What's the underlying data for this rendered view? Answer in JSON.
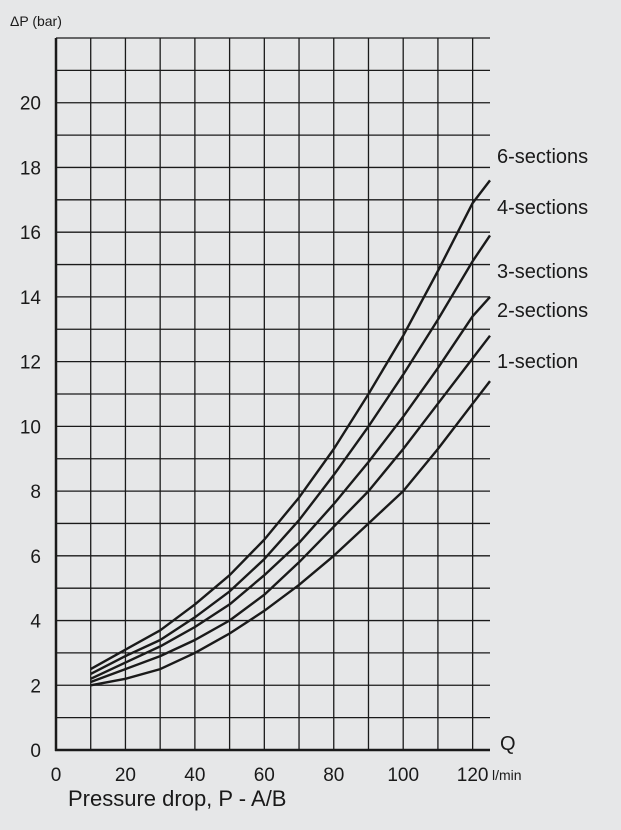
{
  "caption": "Pressure drop, P - A/B",
  "chart_data": {
    "type": "line",
    "ylabel": "ΔP (bar)",
    "xlabel_letter": "Q",
    "xunit": "l/min",
    "xlim": [
      0,
      125
    ],
    "ylim": [
      0,
      22
    ],
    "xticks": [
      0,
      20,
      40,
      60,
      80,
      100,
      120
    ],
    "yticks": [
      0,
      2,
      4,
      6,
      8,
      10,
      12,
      14,
      16,
      18,
      20
    ],
    "grid": true,
    "legend_placement": "right",
    "series": [
      {
        "name": "6-sections",
        "x": [
          10,
          20,
          30,
          40,
          50,
          60,
          70,
          80,
          90,
          100,
          110,
          120,
          125
        ],
        "y": [
          2.5,
          3.1,
          3.7,
          4.5,
          5.4,
          6.5,
          7.8,
          9.3,
          11.0,
          12.8,
          14.8,
          16.9,
          17.6
        ]
      },
      {
        "name": "4-sections",
        "x": [
          10,
          20,
          30,
          40,
          50,
          60,
          70,
          80,
          90,
          100,
          110,
          120,
          125
        ],
        "y": [
          2.35,
          2.9,
          3.4,
          4.1,
          4.9,
          5.9,
          7.1,
          8.5,
          10.0,
          11.6,
          13.3,
          15.1,
          15.9
        ]
      },
      {
        "name": "3-sections",
        "x": [
          10,
          20,
          30,
          40,
          50,
          60,
          70,
          80,
          90,
          100,
          110,
          120,
          125
        ],
        "y": [
          2.2,
          2.7,
          3.2,
          3.8,
          4.5,
          5.4,
          6.4,
          7.6,
          8.9,
          10.3,
          11.8,
          13.4,
          14.0
        ]
      },
      {
        "name": "2-sections",
        "x": [
          10,
          20,
          30,
          40,
          50,
          60,
          70,
          80,
          90,
          100,
          110,
          120,
          125
        ],
        "y": [
          2.1,
          2.5,
          2.9,
          3.4,
          4.0,
          4.8,
          5.8,
          6.9,
          8.0,
          9.3,
          10.7,
          12.1,
          12.8
        ]
      },
      {
        "name": "1-section",
        "x": [
          10,
          20,
          30,
          40,
          50,
          60,
          70,
          80,
          90,
          100,
          110,
          120,
          125
        ],
        "y": [
          2.0,
          2.2,
          2.5,
          3.0,
          3.6,
          4.3,
          5.1,
          6.0,
          7.0,
          8.0,
          9.3,
          10.7,
          11.4
        ]
      }
    ],
    "line_color": "#1a1a1a",
    "grid_color": "#1a1a1a",
    "background_color": "#e6e7e8"
  }
}
